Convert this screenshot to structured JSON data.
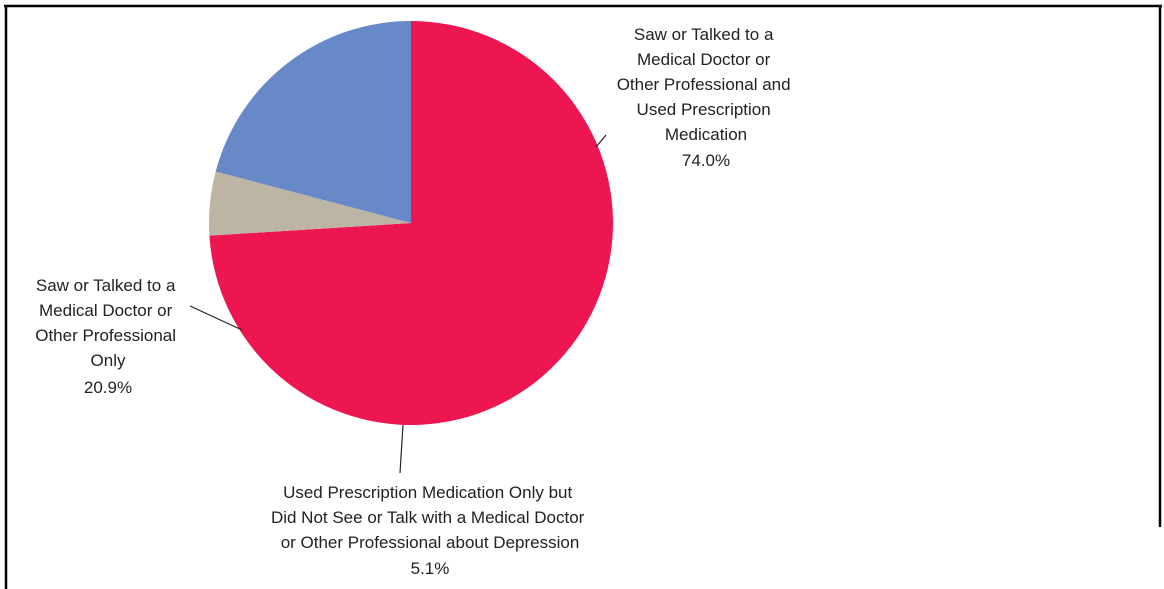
{
  "chart_data": {
    "type": "pie",
    "start_angle_deg": 0,
    "direction": "clockwise",
    "slices": [
      {
        "label_lines": [
          "Saw or Talked to a",
          "Medical Doctor or",
          "Other Professional and",
          "Used Prescription",
          "Medication"
        ],
        "value": 74.0,
        "value_label": "74.0%",
        "color": "#ee1651"
      },
      {
        "label_lines": [
          "Used Prescription Medication Only but",
          "Did Not See or Talk with a Medical Doctor",
          "or Other Professional about Depression"
        ],
        "value": 5.1,
        "value_label": "5.1%",
        "color": "#bdb5a4"
      },
      {
        "label_lines": [
          "Saw or Talked to a",
          "Medical Doctor or",
          "Other Professional",
          "Only"
        ],
        "value": 20.9,
        "value_label": "20.9%",
        "color": "#6889c7"
      }
    ]
  }
}
